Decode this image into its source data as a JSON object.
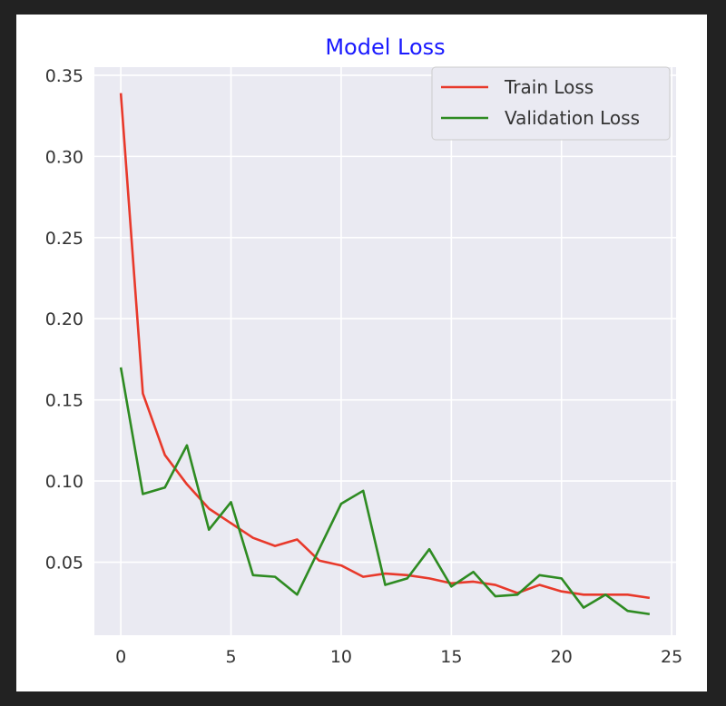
{
  "chart_data": {
    "type": "line",
    "title": "Model Loss",
    "title_color": "#1a1aff",
    "xlabel": "",
    "ylabel": "",
    "xlim": [
      -1.2,
      25.2
    ],
    "ylim": [
      0.005,
      0.355
    ],
    "x_ticks": [
      0,
      5,
      10,
      15,
      20,
      25
    ],
    "y_ticks": [
      0.05,
      0.1,
      0.15,
      0.2,
      0.25,
      0.3,
      0.35
    ],
    "x_tick_labels": [
      "0",
      "5",
      "10",
      "15",
      "20",
      "25"
    ],
    "y_tick_labels": [
      "0.05",
      "0.10",
      "0.15",
      "0.20",
      "0.25",
      "0.30",
      "0.35"
    ],
    "grid": true,
    "background": "#eaeaf2",
    "legend_position": "top-right",
    "x": [
      0,
      1,
      2,
      3,
      4,
      5,
      6,
      7,
      8,
      9,
      10,
      11,
      12,
      13,
      14,
      15,
      16,
      17,
      18,
      19,
      20,
      21,
      22,
      23,
      24
    ],
    "series": [
      {
        "name": "Train Loss",
        "color": "#e8392b",
        "values": [
          0.339,
          0.154,
          0.116,
          0.098,
          0.083,
          0.074,
          0.065,
          0.06,
          0.064,
          0.051,
          0.048,
          0.041,
          0.043,
          0.042,
          0.04,
          0.037,
          0.038,
          0.036,
          0.031,
          0.036,
          0.032,
          0.03,
          0.03,
          0.03,
          0.028
        ]
      },
      {
        "name": "Validation Loss",
        "color": "#2e8b22",
        "values": [
          0.17,
          0.092,
          0.096,
          0.122,
          0.07,
          0.087,
          0.042,
          0.041,
          0.03,
          0.058,
          0.086,
          0.094,
          0.036,
          0.04,
          0.058,
          0.035,
          0.044,
          0.029,
          0.03,
          0.042,
          0.04,
          0.022,
          0.03,
          0.02,
          0.018
        ]
      }
    ]
  }
}
